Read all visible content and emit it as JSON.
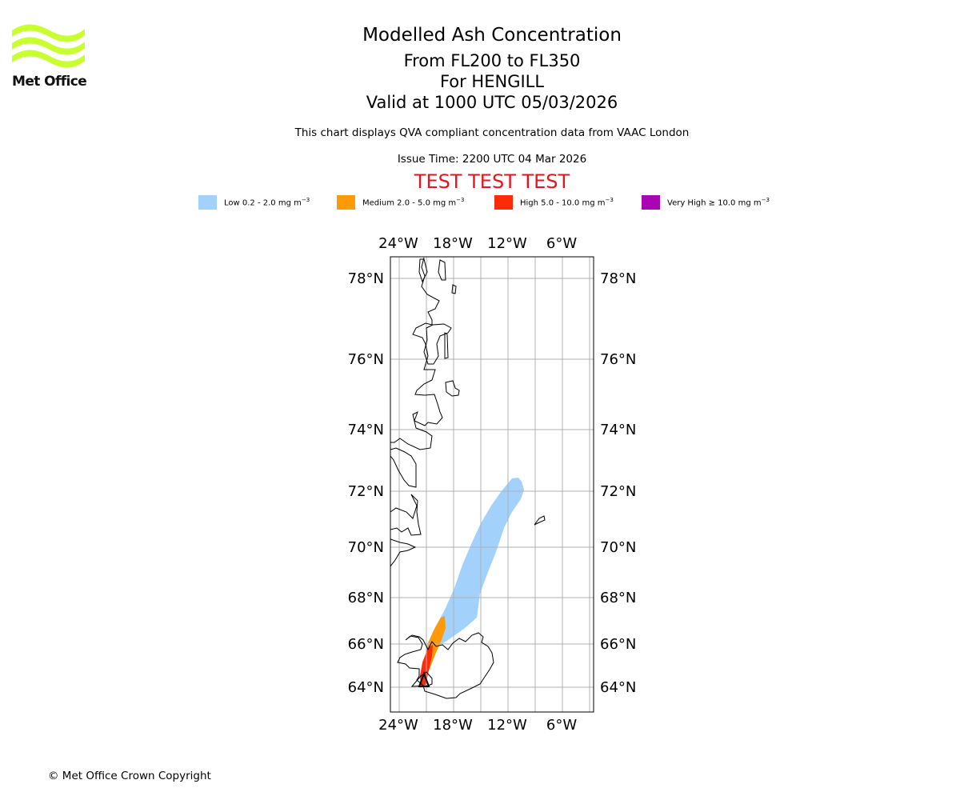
{
  "header": {
    "logo_text": "Met Office",
    "title": "Modelled Ash Concentration",
    "flight_levels": "From FL200 to FL350",
    "volcano": "For HENGILL",
    "valid_time": "Valid at 1000 UTC 05/03/2026",
    "description": "This chart displays QVA compliant concentration data from VAAC London",
    "issue_time": "Issue Time: 2200 UTC 04 Mar 2026",
    "test_banner": "TEST TEST TEST"
  },
  "legend": [
    {
      "name": "Low",
      "text": "Low 0.2 - 2.0 mg m",
      "color": "#a2d2fb"
    },
    {
      "name": "Medium",
      "text": "Medium 2.0 - 5.0 mg m",
      "color": "#ff9a07"
    },
    {
      "name": "High",
      "text": "High 5.0 - 10.0 mg m",
      "color": "#ff2a07"
    },
    {
      "name": "Very High",
      "text": "Very High ≥ 10.0 mg m",
      "color": "#a905b3"
    }
  ],
  "legend_unit_exponent": "−3",
  "map": {
    "lon_labels": [
      "24°W",
      "18°W",
      "12°W",
      "6°W"
    ],
    "lat_labels": [
      "78°N",
      "76°N",
      "74°N",
      "72°N",
      "70°N",
      "68°N",
      "66°N",
      "64°N"
    ]
  },
  "footer": {
    "copyright": "© Met Office Crown Copyright"
  }
}
